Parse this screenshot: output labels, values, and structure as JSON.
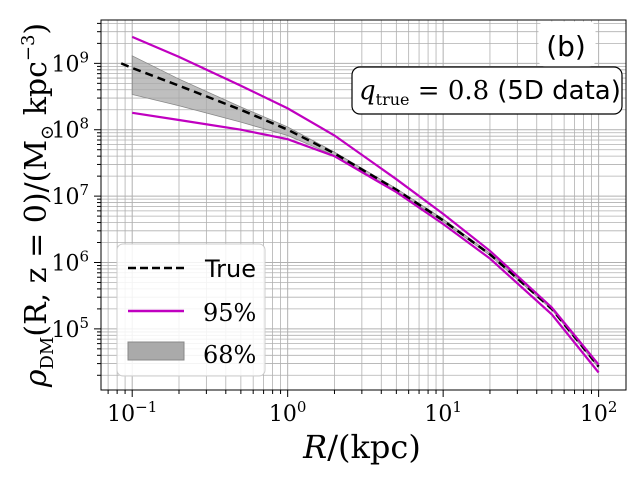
{
  "chart_data": {
    "type": "line",
    "panel_label": "(b)",
    "annotation": {
      "math": "q",
      "math_sub": "true",
      "math_rest": " = 0.8",
      "text": "(5D data)"
    },
    "xlabel": {
      "var": "R",
      "rest": "/(kpc)"
    },
    "ylabel": {
      "var": "ρ",
      "sub": "DM",
      "rest": "(R, z = 0)/(M",
      "sun": "⊙",
      "unit": " kpc",
      "exp": "−3",
      "close": ")"
    },
    "xscale": "log",
    "yscale": "log",
    "xlim": [
      0.063,
      150
    ],
    "ylim": [
      12000,
      4500000000
    ],
    "grid": true,
    "x_ticks": [
      {
        "value": 0.1,
        "base": "10",
        "exp": "−1"
      },
      {
        "value": 1,
        "base": "10",
        "exp": "0"
      },
      {
        "value": 10,
        "base": "10",
        "exp": "1"
      },
      {
        "value": 100,
        "base": "10",
        "exp": "2"
      }
    ],
    "y_ticks": [
      {
        "value": 100000,
        "base": "10",
        "exp": "5"
      },
      {
        "value": 1000000,
        "base": "10",
        "exp": "6"
      },
      {
        "value": 10000000,
        "base": "10",
        "exp": "7"
      },
      {
        "value": 100000000,
        "base": "10",
        "exp": "8"
      },
      {
        "value": 1000000000,
        "base": "10",
        "exp": "9"
      }
    ],
    "series": [
      {
        "name": "True",
        "style": "dashed",
        "color": "#000000",
        "x": [
          0.085,
          0.1,
          0.2,
          0.5,
          1,
          2,
          5,
          10,
          20,
          50,
          100
        ],
        "y": [
          1000000000,
          850000000,
          460000000,
          200000000,
          100000000,
          44000000,
          12500000,
          4300000,
          1330000,
          200000,
          27000
        ]
      },
      {
        "name": "95% upper",
        "style": "solid",
        "color": "#c000c0",
        "x": [
          0.1,
          0.2,
          0.5,
          1,
          2,
          5,
          10,
          20,
          50,
          100
        ],
        "y": [
          2500000000,
          1250000000,
          460000000,
          210000000,
          82000000,
          18000000,
          5400000,
          1500000,
          210000,
          29000
        ]
      },
      {
        "name": "95% lower",
        "style": "solid",
        "color": "#c000c0",
        "x": [
          0.1,
          0.2,
          0.5,
          1,
          2,
          5,
          10,
          20,
          50,
          100
        ],
        "y": [
          180000000,
          140000000,
          100000000,
          72000000,
          40000000,
          11500000,
          3800000,
          1150000,
          165000,
          22000
        ]
      }
    ],
    "band": {
      "name": "68%",
      "color": "#aaaaaa",
      "x": [
        0.1,
        0.2,
        0.5,
        1,
        2,
        5,
        10,
        20,
        50,
        100
      ],
      "upper": [
        1300000000,
        580000000,
        220000000,
        110000000,
        46000000,
        13000000,
        4500000,
        1380000,
        205000,
        28000
      ],
      "lower": [
        340000000,
        230000000,
        130000000,
        82000000,
        41000000,
        12000000,
        4100000,
        1280000,
        195000,
        26000
      ]
    },
    "legend": {
      "placement": "lower-left",
      "entries": [
        {
          "label": "True",
          "marker": "dashed-line"
        },
        {
          "label": "95%",
          "marker": "magenta-line"
        },
        {
          "label": "68%",
          "marker": "grey-patch"
        }
      ]
    }
  }
}
